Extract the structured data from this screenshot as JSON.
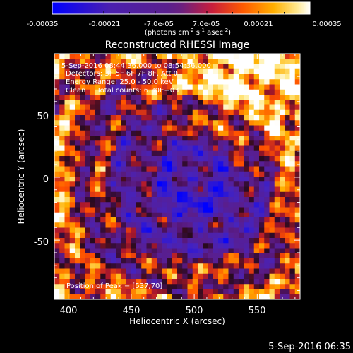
{
  "colorbar": {
    "tick_labels": [
      "-0.00035",
      "-0.00021",
      "-7.0e-05",
      "7.0e-05",
      "0.00021",
      "0.00035"
    ],
    "unit_label": "(photons cm",
    "unit_sup1": "-2",
    "unit_mid": " s",
    "unit_sup2": "-1",
    "unit_tail": " asec",
    "unit_sup3": "-2",
    "unit_end": ")"
  },
  "chart_data": {
    "type": "heatmap",
    "title": "Reconstructed RHESSI Image",
    "xlabel": "Heliocentric X (arcsec)",
    "ylabel": "Heliocentric Y (arcsec)",
    "xlim": [
      389,
      584
    ],
    "ylim": [
      -97,
      98
    ],
    "x_ticks": [
      400,
      450,
      500,
      550
    ],
    "y_ticks": [
      50,
      0,
      -50
    ],
    "color_range": [
      -0.00035,
      0.00035
    ],
    "colormap": "blue-purple-red-yellow-white",
    "peak_position": [
      537,
      70
    ],
    "annotations": [
      "5-Sep-2016 08:44:36.000 to 08:54:36.000",
      "Detectors: 3F 5F 6F 7F 8F, Att 0",
      "Energy Range: 25.0 - 50.0 keV",
      "Clean     Total counts: 6.30E+03",
      "Position of Peak = [537,70]"
    ]
  },
  "footer": {
    "timestamp": "5-Sep-2016 06:35"
  }
}
